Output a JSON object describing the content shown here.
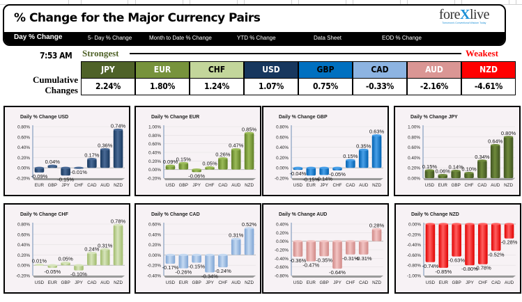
{
  "header": {
    "title": "% Change for the Major Currency Pairs",
    "nav": [
      {
        "label": "Day % Change",
        "active": true
      },
      {
        "label": "5- Day % Change",
        "active": false
      },
      {
        "label": "Month to Date % Change",
        "active": false
      },
      {
        "label": "YTD % Change",
        "active": false
      },
      {
        "label": "Data Sheet",
        "active": false
      },
      {
        "label": "EOD % Change",
        "active": false
      }
    ],
    "logo": {
      "text_left": "fore",
      "text_x": "X",
      "text_right": "live",
      "tagline": "Tomorrow's Conventional Wisdom Today"
    }
  },
  "summary": {
    "time": "7:53 AM",
    "strongest_label": "Strongest",
    "weakest_label": "Weakest",
    "cumulative_label_line1": "Cumulative",
    "cumulative_label_line2": "Changes",
    "tiles": [
      {
        "currency": "JPY",
        "value": "2.24%",
        "bg": "#4f6228",
        "fg": "#ffffff"
      },
      {
        "currency": "EUR",
        "value": "1.80%",
        "bg": "#77933c",
        "fg": "#ffffff"
      },
      {
        "currency": "CHF",
        "value": "1.24%",
        "bg": "#c3d69b",
        "fg": "#000000"
      },
      {
        "currency": "USD",
        "value": "1.07%",
        "bg": "#17375e",
        "fg": "#ffffff"
      },
      {
        "currency": "GBP",
        "value": "0.75%",
        "bg": "#0070c0",
        "fg": "#000000"
      },
      {
        "currency": "CAD",
        "value": "-0.33%",
        "bg": "#8db4e2",
        "fg": "#000000"
      },
      {
        "currency": "AUD",
        "value": "-2.16%",
        "bg": "#da9694",
        "fg": "#ffffff"
      },
      {
        "currency": "NZD",
        "value": "-4.61%",
        "bg": "#ff0000",
        "fg": "#ffffff"
      }
    ]
  },
  "chart_data": [
    {
      "type": "bar",
      "title": "Daily % Change USD",
      "categories": [
        "EUR",
        "GBP",
        "JPY",
        "CHF",
        "CAD",
        "AUD",
        "NZD"
      ],
      "values": [
        -0.09,
        0.04,
        -0.15,
        -0.01,
        0.17,
        0.36,
        0.74
      ],
      "labels": [
        "-0.09%",
        "0.04%",
        "-0.15%",
        "-0.01%",
        "0.17%",
        "0.36%",
        "0.74%"
      ],
      "ylim": [
        -0.2,
        0.8
      ],
      "ticks": [
        "-0.20%",
        "0.00%",
        "0.20%",
        "0.40%",
        "0.60%",
        "0.80%"
      ],
      "color": "#17375e",
      "light": "#4a6a95"
    },
    {
      "type": "bar",
      "title": "Daily % Change EUR",
      "categories": [
        "USD",
        "GBP",
        "JPY",
        "CHF",
        "CAD",
        "AUD",
        "NZD"
      ],
      "values": [
        0.09,
        0.15,
        -0.06,
        0.05,
        0.26,
        0.47,
        0.85
      ],
      "labels": [
        "0.09%",
        "0.15%",
        "-0.06%",
        "0.05%",
        "0.26%",
        "0.47%",
        "0.85%"
      ],
      "ylim": [
        -0.2,
        1.0
      ],
      "ticks": [
        "-0.20%",
        "0.00%",
        "0.20%",
        "0.40%",
        "0.60%",
        "0.80%",
        "1.00%"
      ],
      "color": "#5f7f26",
      "light": "#9bbb59"
    },
    {
      "type": "bar",
      "title": "Daily % Change GBP",
      "categories": [
        "USD",
        "EUR",
        "JPY",
        "CHF",
        "CAD",
        "AUD",
        "NZD"
      ],
      "values": [
        -0.04,
        -0.15,
        -0.14,
        -0.05,
        0.15,
        0.35,
        0.63
      ],
      "labels": [
        "-0.04%",
        "-0.15%",
        "-0.14%",
        "-0.05%",
        "0.15%",
        "0.35%",
        "0.63%"
      ],
      "ylim": [
        -0.2,
        0.8
      ],
      "ticks": [
        "-0.20%",
        "0.00%",
        "0.20%",
        "0.40%",
        "0.60%",
        "0.80%"
      ],
      "color": "#0060b0",
      "light": "#4aa0e8"
    },
    {
      "type": "bar",
      "title": "Daily % Change JPY",
      "categories": [
        "USD",
        "EUR",
        "GBP",
        "CHF",
        "CAD",
        "AUD",
        "NZD"
      ],
      "values": [
        0.15,
        0.06,
        0.14,
        0.1,
        0.34,
        0.64,
        0.8
      ],
      "labels": [
        "0.15%",
        "0.06%",
        "0.14%",
        "0.10%",
        "0.34%",
        "0.64%",
        "0.80%"
      ],
      "ylim": [
        0,
        1.0
      ],
      "ticks": [
        "0.00%",
        "0.20%",
        "0.40%",
        "0.60%",
        "0.80%",
        "1.00%"
      ],
      "color": "#3f5220",
      "light": "#6f8a3c"
    },
    {
      "type": "bar",
      "title": "Daily % Change CHF",
      "categories": [
        "USD",
        "EUR",
        "GBP",
        "JPY",
        "CAD",
        "AUD",
        "NZD"
      ],
      "values": [
        0.01,
        -0.05,
        0.05,
        -0.1,
        0.24,
        0.31,
        0.78
      ],
      "labels": [
        "0.01%",
        "-0.05%",
        "0.05%",
        "-0.10%",
        "0.24%",
        "0.31%",
        "0.78%"
      ],
      "ylim": [
        -0.2,
        0.8
      ],
      "ticks": [
        "-0.20%",
        "0.00%",
        "0.20%",
        "0.40%",
        "0.60%",
        "0.80%"
      ],
      "color": "#9fba6a",
      "light": "#d7e4bc"
    },
    {
      "type": "bar",
      "title": "Daily % Change CAD",
      "categories": [
        "USD",
        "EUR",
        "GBP",
        "JPY",
        "CHF",
        "AUD",
        "NZD"
      ],
      "values": [
        -0.17,
        -0.26,
        -0.15,
        -0.34,
        -0.24,
        0.31,
        0.52
      ],
      "labels": [
        "-0.17%",
        "-0.26%",
        "-0.15%",
        "-0.34%",
        "-0.24%",
        "0.31%",
        "0.52%"
      ],
      "ylim": [
        -0.4,
        0.6
      ],
      "ticks": [
        "-0.40%",
        "-0.20%",
        "0.00%",
        "0.20%",
        "0.40%",
        "0.60%"
      ],
      "color": "#7da4d4",
      "light": "#c5d9f1"
    },
    {
      "type": "bar",
      "title": "Daily % Change AUD",
      "categories": [
        "USD",
        "EUR",
        "GBP",
        "JPY",
        "CHF",
        "CAD",
        "NZD"
      ],
      "values": [
        -0.36,
        -0.47,
        -0.35,
        -0.64,
        -0.31,
        -0.31,
        0.28
      ],
      "labels": [
        "-0.36%",
        "-0.47%",
        "-0.35%",
        "-0.64%",
        "-0.31%",
        "-0.31%",
        "0.28%"
      ],
      "ylim": [
        -0.8,
        0.4
      ],
      "ticks": [
        "-0.80%",
        "-0.60%",
        "-0.40%",
        "-0.20%",
        "0.00%",
        "0.20%",
        "0.40%"
      ],
      "color": "#d08886",
      "light": "#f2c4c3"
    },
    {
      "type": "bar",
      "title": "Daily % Change NZD",
      "categories": [
        "USD",
        "EUR",
        "GBP",
        "JPY",
        "CHF",
        "CAD",
        "AUD"
      ],
      "values": [
        -0.74,
        -0.85,
        -0.63,
        -0.8,
        -0.78,
        -0.52,
        -0.28
      ],
      "labels": [
        "-0.74%",
        "-0.85%",
        "-0.63%",
        "-0.80%",
        "-0.78%",
        "-0.52%",
        "-0.28%"
      ],
      "ylim": [
        -1.0,
        0
      ],
      "ticks": [
        "-1.00%",
        "-0.80%",
        "-0.60%",
        "-0.40%",
        "-0.20%",
        "0.00%"
      ],
      "color": "#e00000",
      "light": "#ff6060"
    }
  ]
}
